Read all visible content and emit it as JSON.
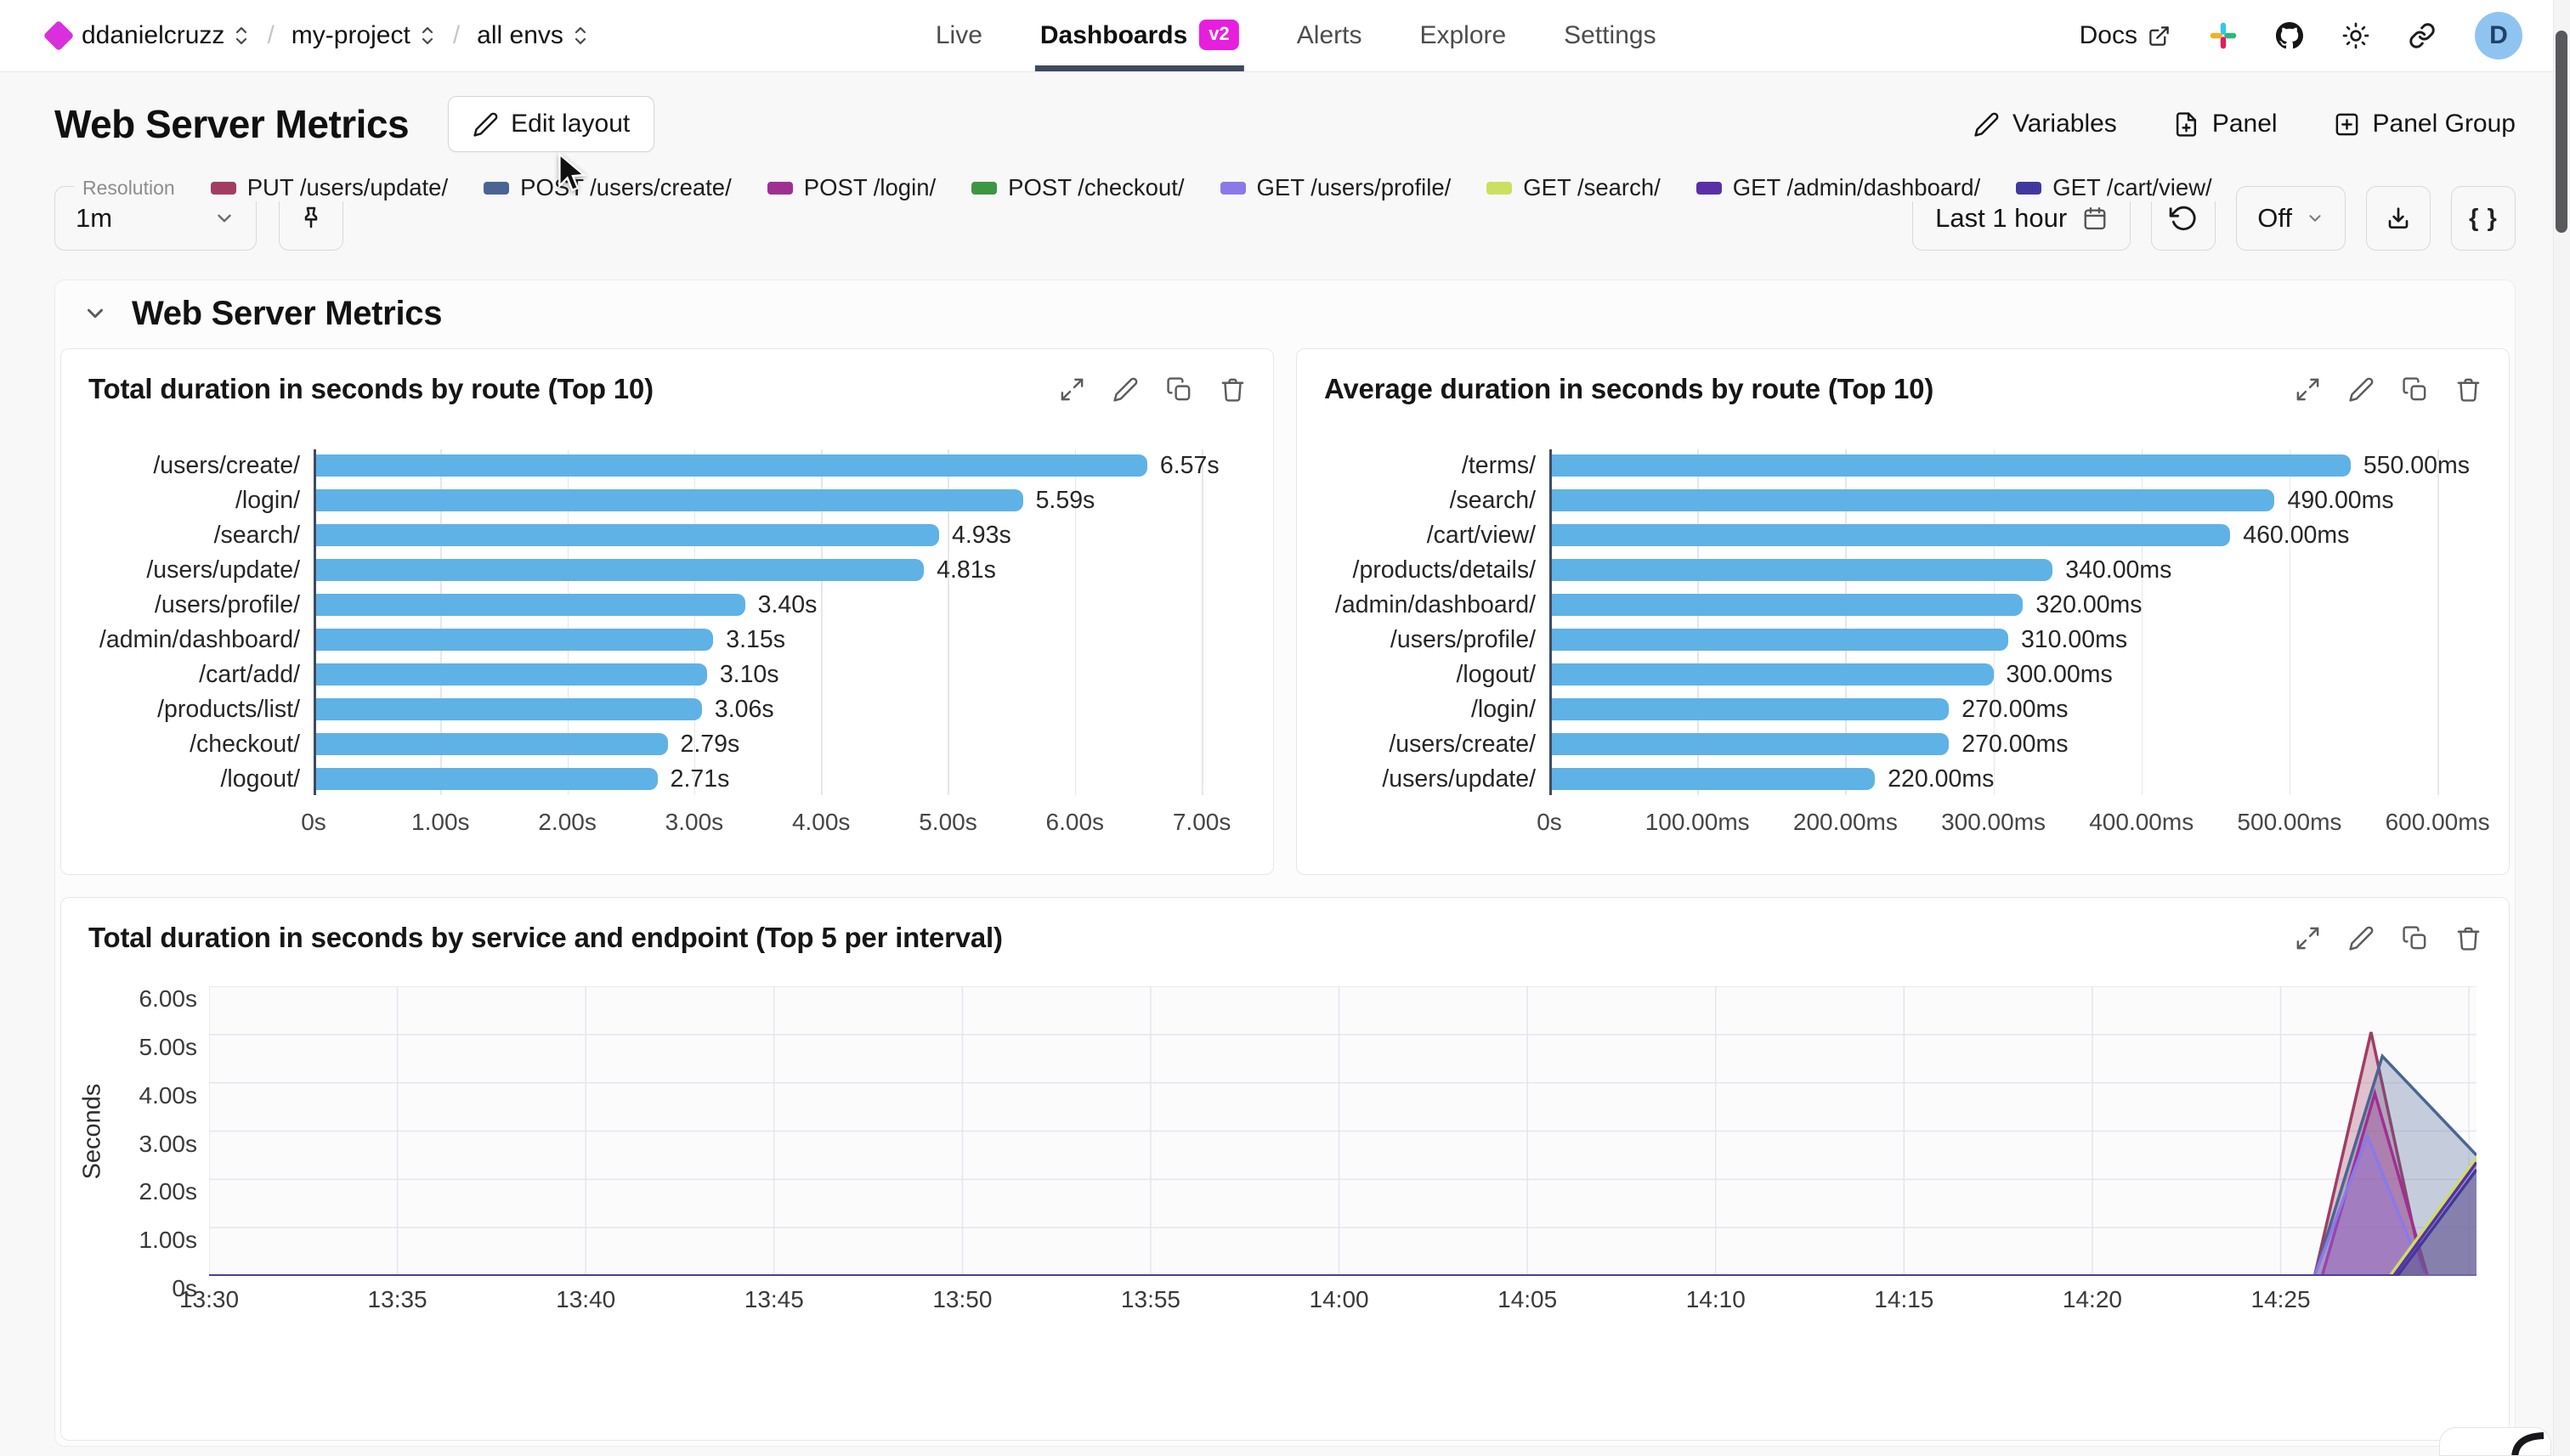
{
  "nav": {
    "breadcrumb": [
      {
        "label": "ddanielcruzz"
      },
      {
        "label": "my-project"
      },
      {
        "label": "all envs"
      }
    ],
    "tabs": [
      {
        "label": "Live",
        "active": false
      },
      {
        "label": "Dashboards",
        "badge": "v2",
        "active": true
      },
      {
        "label": "Alerts",
        "active": false
      },
      {
        "label": "Explore",
        "active": false
      },
      {
        "label": "Settings",
        "active": false
      }
    ],
    "docs_label": "Docs",
    "avatar_initial": "D"
  },
  "header": {
    "title": "Web Server Metrics",
    "edit_layout_label": "Edit layout",
    "variables_label": "Variables",
    "panel_label": "Panel",
    "panel_group_label": "Panel Group"
  },
  "toolbar": {
    "resolution_label": "Resolution",
    "resolution_value": "1m",
    "time_range_label": "Last 1 hour",
    "refresh_off_label": "Off",
    "code_label": "{ }"
  },
  "section": {
    "title": "Web Server Metrics"
  },
  "colors": {
    "accent_magenta": "#e71ede",
    "logo_magenta": "#d92fdc",
    "tab_underline": "#3f4a61",
    "bar_blue": "#5fb2e6",
    "axis_dark": "#3e4a63",
    "grid_light": "#e6e6f0",
    "avatar_bg": "#8fc4f1"
  },
  "chart_data": [
    {
      "type": "bar",
      "orientation": "horizontal",
      "title": "Total duration in seconds by route (Top 10)",
      "categories": [
        "/users/create/",
        "/login/",
        "/search/",
        "/users/update/",
        "/users/profile/",
        "/admin/dashboard/",
        "/cart/add/",
        "/products/list/",
        "/checkout/",
        "/logout/"
      ],
      "values": [
        6.57,
        5.59,
        4.93,
        4.81,
        3.4,
        3.15,
        3.1,
        3.06,
        2.79,
        2.71
      ],
      "value_labels": [
        "6.57s",
        "5.59s",
        "4.93s",
        "4.81s",
        "3.40s",
        "3.15s",
        "3.10s",
        "3.06s",
        "2.79s",
        "2.71s"
      ],
      "xlim": [
        0,
        7
      ],
      "x_ticks": [
        {
          "v": 0,
          "label": "0s"
        },
        {
          "v": 1,
          "label": "1.00s"
        },
        {
          "v": 2,
          "label": "2.00s"
        },
        {
          "v": 3,
          "label": "3.00s"
        },
        {
          "v": 4,
          "label": "4.00s"
        },
        {
          "v": 5,
          "label": "5.00s"
        },
        {
          "v": 6,
          "label": "6.00s"
        },
        {
          "v": 7,
          "label": "7.00s"
        }
      ],
      "bar_color": "#5fb2e6",
      "grid": true
    },
    {
      "type": "bar",
      "orientation": "horizontal",
      "title": "Average duration in seconds by route (Top 10)",
      "categories": [
        "/terms/",
        "/search/",
        "/cart/view/",
        "/products/details/",
        "/admin/dashboard/",
        "/users/profile/",
        "/logout/",
        "/login/",
        "/users/create/",
        "/users/update/"
      ],
      "values": [
        550,
        490,
        460,
        340,
        320,
        310,
        300,
        270,
        270,
        220
      ],
      "value_labels": [
        "550.00ms",
        "490.00ms",
        "460.00ms",
        "340.00ms",
        "320.00ms",
        "310.00ms",
        "300.00ms",
        "270.00ms",
        "270.00ms",
        "220.00ms"
      ],
      "xlim": [
        0,
        600
      ],
      "x_ticks": [
        {
          "v": 0,
          "label": "0s"
        },
        {
          "v": 100,
          "label": "100.00ms"
        },
        {
          "v": 200,
          "label": "200.00ms"
        },
        {
          "v": 300,
          "label": "300.00ms"
        },
        {
          "v": 400,
          "label": "400.00ms"
        },
        {
          "v": 500,
          "label": "500.00ms"
        },
        {
          "v": 600,
          "label": "600.00ms"
        }
      ],
      "bar_color": "#5fb2e6",
      "grid": true
    },
    {
      "type": "line",
      "title": "Total duration in seconds by service and endpoint (Top 5 per interval)",
      "ylabel": "Seconds",
      "ylim": [
        0,
        6
      ],
      "y_ticks": [
        {
          "v": 0,
          "label": "0s"
        },
        {
          "v": 1,
          "label": "1.00s"
        },
        {
          "v": 2,
          "label": "2.00s"
        },
        {
          "v": 3,
          "label": "3.00s"
        },
        {
          "v": 4,
          "label": "4.00s"
        },
        {
          "v": 5,
          "label": "5.00s"
        },
        {
          "v": 6,
          "label": "6.00s"
        }
      ],
      "x_start_label": "13:30",
      "x_end_minutes": 60.2,
      "x_ticks": [
        {
          "t": 0,
          "label": "13:30"
        },
        {
          "t": 5,
          "label": "13:35"
        },
        {
          "t": 10,
          "label": "13:40"
        },
        {
          "t": 15,
          "label": "13:45"
        },
        {
          "t": 20,
          "label": "13:50"
        },
        {
          "t": 25,
          "label": "13:55"
        },
        {
          "t": 30,
          "label": "14:00"
        },
        {
          "t": 35,
          "label": "14:05"
        },
        {
          "t": 40,
          "label": "14:10"
        },
        {
          "t": 45,
          "label": "14:15"
        },
        {
          "t": 50,
          "label": "14:20"
        },
        {
          "t": 55,
          "label": "14:25"
        }
      ],
      "grid": true,
      "legend_position": "bottom",
      "series": [
        {
          "name": "PUT /users/update/",
          "color": "#a13d63",
          "points": [
            [
              0,
              0
            ],
            [
              55.9,
              0
            ],
            [
              57.4,
              5.05
            ],
            [
              58.8,
              0
            ],
            [
              60.2,
              0
            ]
          ]
        },
        {
          "name": "POST /users/create/",
          "color": "#4a6591",
          "points": [
            [
              0,
              0
            ],
            [
              55.9,
              0
            ],
            [
              57.7,
              4.55
            ],
            [
              60.2,
              2.5
            ]
          ]
        },
        {
          "name": "POST /login/",
          "color": "#a02f93",
          "points": [
            [
              0,
              0
            ],
            [
              56.1,
              0
            ],
            [
              57.5,
              3.78
            ],
            [
              58.9,
              0
            ],
            [
              60.2,
              0
            ]
          ]
        },
        {
          "name": "POST /checkout/",
          "color": "#3d9643",
          "points": [
            [
              0,
              0
            ],
            [
              60.2,
              0
            ]
          ]
        },
        {
          "name": "GET /users/profile/",
          "color": "#8a79e8",
          "points": [
            [
              0,
              0
            ],
            [
              55.9,
              0
            ],
            [
              57.3,
              2.9
            ],
            [
              58.8,
              0
            ],
            [
              60.2,
              0
            ]
          ]
        },
        {
          "name": "GET /search/",
          "color": "#cbe060",
          "points": [
            [
              0,
              0
            ],
            [
              57.9,
              0
            ],
            [
              60.2,
              2.45
            ]
          ]
        },
        {
          "name": "GET /admin/dashboard/",
          "color": "#5b2fa8",
          "points": [
            [
              0,
              0
            ],
            [
              58.0,
              0
            ],
            [
              60.2,
              2.35
            ]
          ]
        },
        {
          "name": "GET /cart/view/",
          "color": "#4038a0",
          "points": [
            [
              0,
              0
            ],
            [
              58.1,
              0
            ],
            [
              60.2,
              2.2
            ]
          ]
        }
      ]
    }
  ]
}
